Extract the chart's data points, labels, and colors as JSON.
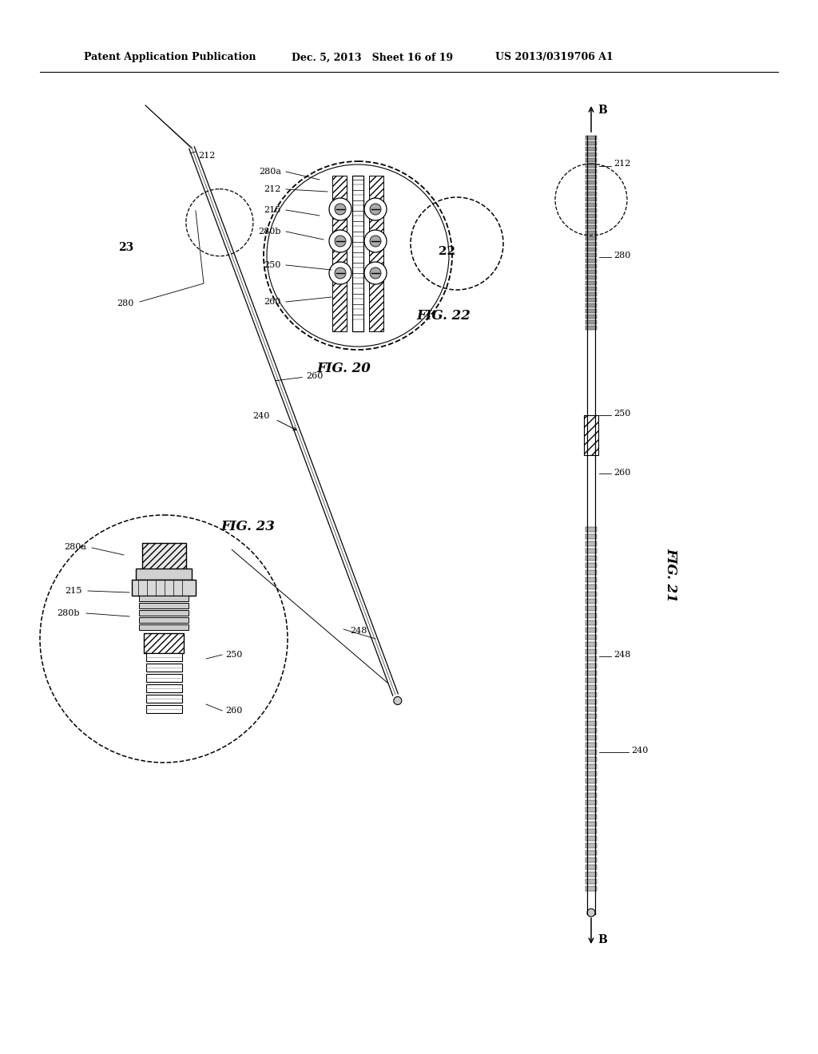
{
  "background_color": "#ffffff",
  "header_left": "Patent Application Publication",
  "header_mid": "Dec. 5, 2013   Sheet 16 of 19",
  "header_right": "US 2013/0319706 A1",
  "fig_labels": [
    "FIG. 20",
    "FIG. 21",
    "FIG. 22",
    "FIG. 23"
  ]
}
